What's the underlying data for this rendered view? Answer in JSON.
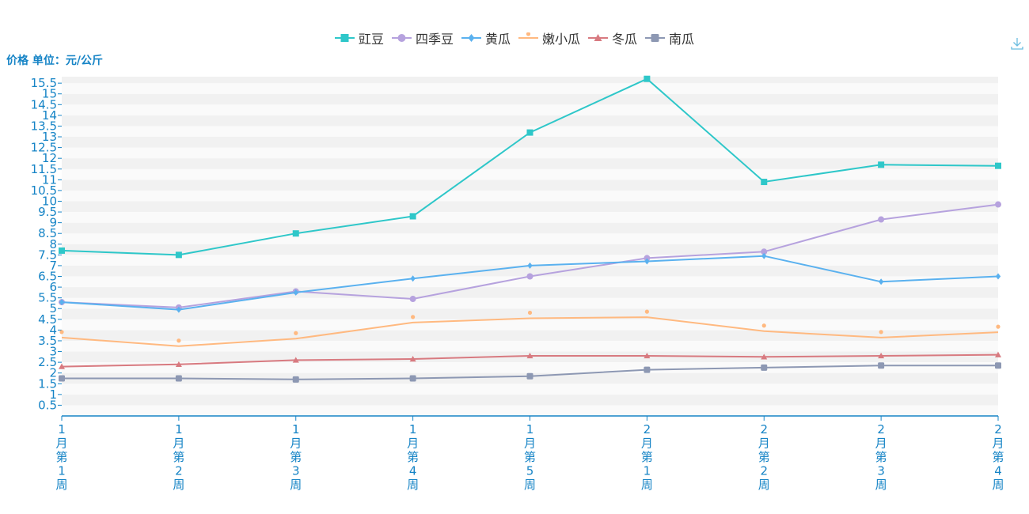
{
  "chart_data": {
    "type": "line",
    "ylabel": "价格 单位：元/公斤",
    "categories": [
      "1月第1周",
      "1月第2周",
      "1月第3周",
      "1月第4周",
      "1月第5周",
      "2月第1周",
      "2月第2周",
      "2月第3周",
      "2月第4周"
    ],
    "x_tick_labels": [
      [
        "1",
        "月",
        "第",
        "1",
        "周"
      ],
      [
        "1",
        "月",
        "第",
        "2",
        "周"
      ],
      [
        "1",
        "月",
        "第",
        "3",
        "周"
      ],
      [
        "1",
        "月",
        "第",
        "4",
        "周"
      ],
      [
        "1",
        "月",
        "第",
        "5",
        "周"
      ],
      [
        "2",
        "月",
        "第",
        "1",
        "周"
      ],
      [
        "2",
        "月",
        "第",
        "2",
        "周"
      ],
      [
        "2",
        "月",
        "第",
        "3",
        "周"
      ],
      [
        "2",
        "月",
        "第",
        "4",
        "周"
      ]
    ],
    "ylim": [
      0,
      15.8
    ],
    "y_ticks": [
      0.5,
      1,
      1.5,
      2,
      2.5,
      3,
      3.5,
      4,
      4.5,
      5,
      5.5,
      6,
      6.5,
      7,
      7.5,
      8,
      8.5,
      9,
      9.5,
      10,
      10.5,
      11,
      11.5,
      12,
      12.5,
      13,
      13.5,
      14,
      14.5,
      15,
      15.5
    ],
    "y_tick_labels": [
      "0.5",
      "1",
      "1.5",
      "2",
      "2.5",
      "3",
      "3.5",
      "4",
      "4.5",
      "5",
      "5.5",
      "6",
      "6.5",
      "7",
      "7.5",
      "8",
      "8.5",
      "9",
      "9.5",
      "10",
      "10.5",
      "11",
      "11.5",
      "12",
      "12.5",
      "13",
      "13.5",
      "14",
      "14.5",
      "15",
      "15.5"
    ],
    "grid": true,
    "legend_position": "top-center",
    "series": [
      {
        "name": "豇豆",
        "color": "#2ec7c9",
        "symbol": "square",
        "values": [
          7.7,
          7.5,
          8.5,
          9.3,
          13.2,
          15.7,
          10.9,
          11.7,
          11.65
        ]
      },
      {
        "name": "四季豆",
        "color": "#b6a2de",
        "symbol": "circle",
        "values": [
          5.3,
          5.05,
          5.8,
          5.45,
          6.5,
          7.35,
          7.65,
          9.15,
          9.85
        ]
      },
      {
        "name": "黄瓜",
        "color": "#5ab1ef",
        "symbol": "diamond",
        "values": [
          5.3,
          4.95,
          5.75,
          6.4,
          7.0,
          7.2,
          7.45,
          6.25,
          6.5
        ]
      },
      {
        "name": "嫩小瓜",
        "color": "#ffb980",
        "symbol": "pin",
        "values": [
          3.65,
          3.25,
          3.6,
          4.35,
          4.55,
          4.6,
          3.95,
          3.65,
          3.9
        ]
      },
      {
        "name": "冬瓜",
        "color": "#d87a80",
        "symbol": "triangle",
        "values": [
          2.3,
          2.4,
          2.6,
          2.65,
          2.8,
          2.8,
          2.75,
          2.8,
          2.85
        ]
      },
      {
        "name": "南瓜",
        "color": "#8d98b3",
        "symbol": "roundRect",
        "values": [
          1.75,
          1.75,
          1.7,
          1.75,
          1.85,
          2.15,
          2.25,
          2.35,
          2.35
        ]
      }
    ]
  },
  "toolbar": {
    "download_icon": "download-icon"
  }
}
